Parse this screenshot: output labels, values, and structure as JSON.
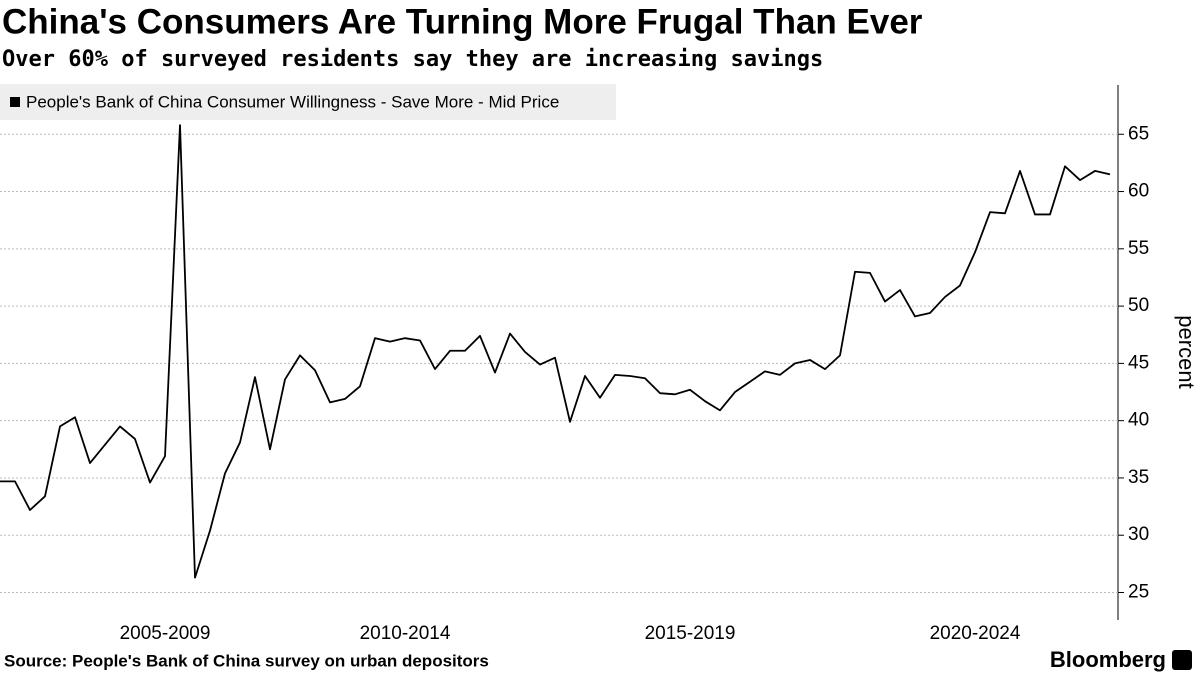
{
  "chart_data": {
    "type": "line",
    "title": "China's Consumers Are Turning More Frugal Than Ever",
    "subtitle": "Over 60% of surveyed residents say they are increasing savings",
    "y_label": "percent",
    "source": "Source: People's Bank of China survey on urban depositors",
    "brand": "Bloomberg",
    "categories": [
      null,
      null,
      null,
      null,
      null,
      null,
      null,
      null,
      null,
      null,
      null,
      "2005-2009",
      null,
      null,
      null,
      null,
      null,
      null,
      null,
      null,
      null,
      null,
      null,
      null,
      null,
      null,
      null,
      "2010-2014",
      null,
      null,
      null,
      null,
      null,
      null,
      null,
      null,
      null,
      null,
      null,
      null,
      null,
      null,
      null,
      null,
      null,
      null,
      "2015-2019",
      null,
      null,
      null,
      null,
      null,
      null,
      null,
      null,
      null,
      null,
      null,
      null,
      null,
      null,
      null,
      null,
      null,
      null,
      "2020-2024",
      null,
      null,
      null,
      null,
      null,
      null,
      null,
      null,
      null
    ],
    "series": [
      {
        "name": "People's Bank of China Consumer Willingness - Save More - Mid Price",
        "color": "#000000",
        "values": [
          34.7,
          34.7,
          32.2,
          33.4,
          39.5,
          40.3,
          36.3,
          37.9,
          39.5,
          38.4,
          34.6,
          36.9,
          65.8,
          26.3,
          30.4,
          35.4,
          38.1,
          43.8,
          37.5,
          43.6,
          45.7,
          44.4,
          41.6,
          41.9,
          43.0,
          47.2,
          46.9,
          47.2,
          47.0,
          44.5,
          46.1,
          46.1,
          47.4,
          44.2,
          47.6,
          46.0,
          44.9,
          45.5,
          39.9,
          43.9,
          42.0,
          44.0,
          43.9,
          43.7,
          42.4,
          42.3,
          42.7,
          41.7,
          40.9,
          42.5,
          43.4,
          44.3,
          44.0,
          45.0,
          45.3,
          44.5,
          45.7,
          53.0,
          52.9,
          50.4,
          51.4,
          49.1,
          49.4,
          50.8,
          51.8,
          54.7,
          58.2,
          58.1,
          61.8,
          58.0,
          58.0,
          62.2,
          61.0,
          61.8,
          61.5
        ]
      }
    ],
    "ylim": [
      22.6,
      69.3
    ],
    "yticks": [
      25,
      30,
      35,
      40,
      45,
      50,
      55,
      60,
      65
    ],
    "grid": true
  }
}
